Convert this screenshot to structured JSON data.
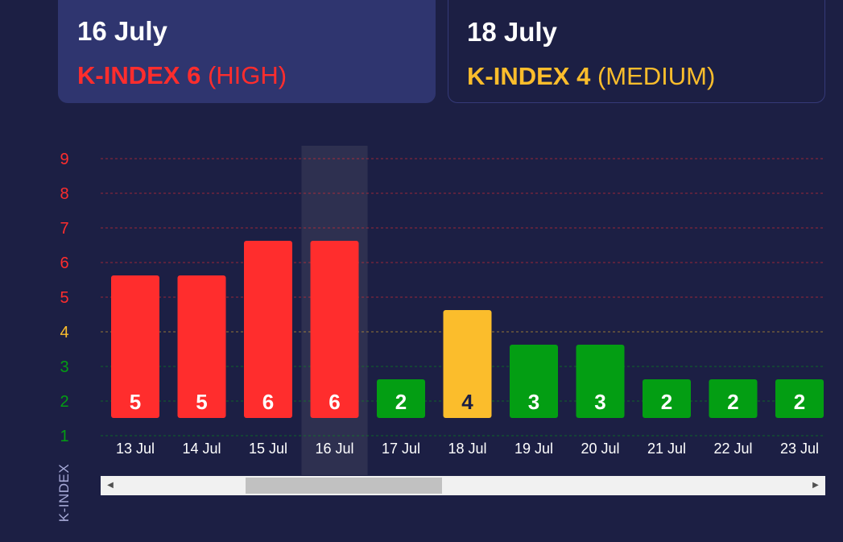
{
  "cards": [
    {
      "date": "16 July",
      "k_label": "K-INDEX 6",
      "level": "(HIGH)",
      "color": "#ff2d2d"
    },
    {
      "date": "18 July",
      "k_label": "K-INDEX 4",
      "level": "(MEDIUM)",
      "color": "#fbbd2c"
    }
  ],
  "colors": {
    "background": "#1c1f44",
    "high": "#ff2d2d",
    "medium": "#fbbd2c",
    "low": "#039e13",
    "highlight_band": "#2e3050"
  },
  "chart_data": {
    "type": "bar",
    "categories": [
      "13 Jul",
      "14 Jul",
      "15 Jul",
      "16 Jul",
      "17 Jul",
      "18 Jul",
      "19 Jul",
      "20 Jul",
      "21 Jul",
      "22 Jul",
      "23 Jul"
    ],
    "values": [
      5,
      5,
      6,
      6,
      2,
      4,
      3,
      3,
      2,
      2,
      2
    ],
    "ylabel": "K-INDEX",
    "yticks": [
      1,
      2,
      3,
      4,
      5,
      6,
      7,
      8,
      9
    ],
    "ylim": [
      1,
      9
    ],
    "grid": true,
    "highlighted_category": "16 Jul"
  }
}
